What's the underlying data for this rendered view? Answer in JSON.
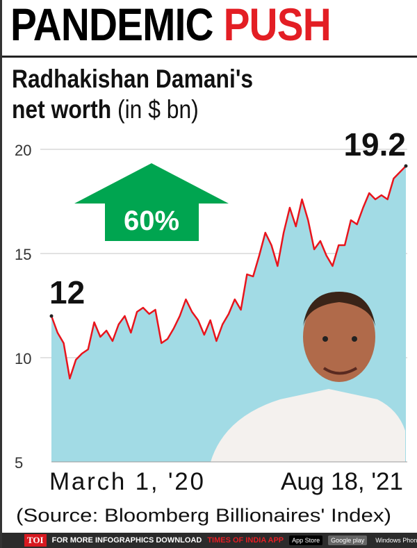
{
  "title": {
    "part1": "PANDEMIC",
    "part2": "PUSH"
  },
  "subtitle": {
    "line1": "Radhakishan Damani's",
    "line2_bold": "net worth",
    "line2_rest": " (in $ bn)"
  },
  "chart_data": {
    "type": "area",
    "title": "Radhakishan Damani's net worth (in $ bn)",
    "x_start": "March 1, '20",
    "x_end": "Aug 18, '21",
    "ylim": [
      5,
      20
    ],
    "yticks": [
      20,
      15,
      10,
      5
    ],
    "grid": true,
    "line_color": "#e8141c",
    "fill_color": "#a2dbe5",
    "values": [
      12,
      11.2,
      10.7,
      9.0,
      9.9,
      10.2,
      10.4,
      11.7,
      11.0,
      11.3,
      10.8,
      11.6,
      12.0,
      11.2,
      12.2,
      12.4,
      12.1,
      12.3,
      10.7,
      10.9,
      11.4,
      12.0,
      12.8,
      12.2,
      11.8,
      11.1,
      11.8,
      10.8,
      11.6,
      12.1,
      12.8,
      12.3,
      14.0,
      13.9,
      14.9,
      16.0,
      15.4,
      14.4,
      16.0,
      17.2,
      16.3,
      17.6,
      16.6,
      15.2,
      15.6,
      14.9,
      14.4,
      15.4,
      15.4,
      16.6,
      16.4,
      17.2,
      17.9,
      17.6,
      17.8,
      17.6,
      18.6,
      18.9,
      19.2
    ],
    "annotations": {
      "start_label": "12",
      "end_label": "19.2",
      "change": "60%",
      "change_color": "#00a550"
    }
  },
  "source": "(Source: Bloomberg Billionaires' Index)",
  "footer": {
    "brand": "TOI",
    "text1": "FOR MORE  INFOGRAPHICS DOWNLOAD",
    "text2": "TIMES OF INDIA  APP",
    "store1": "App Store",
    "store2": "Google play",
    "store3": "Windows Phone"
  }
}
